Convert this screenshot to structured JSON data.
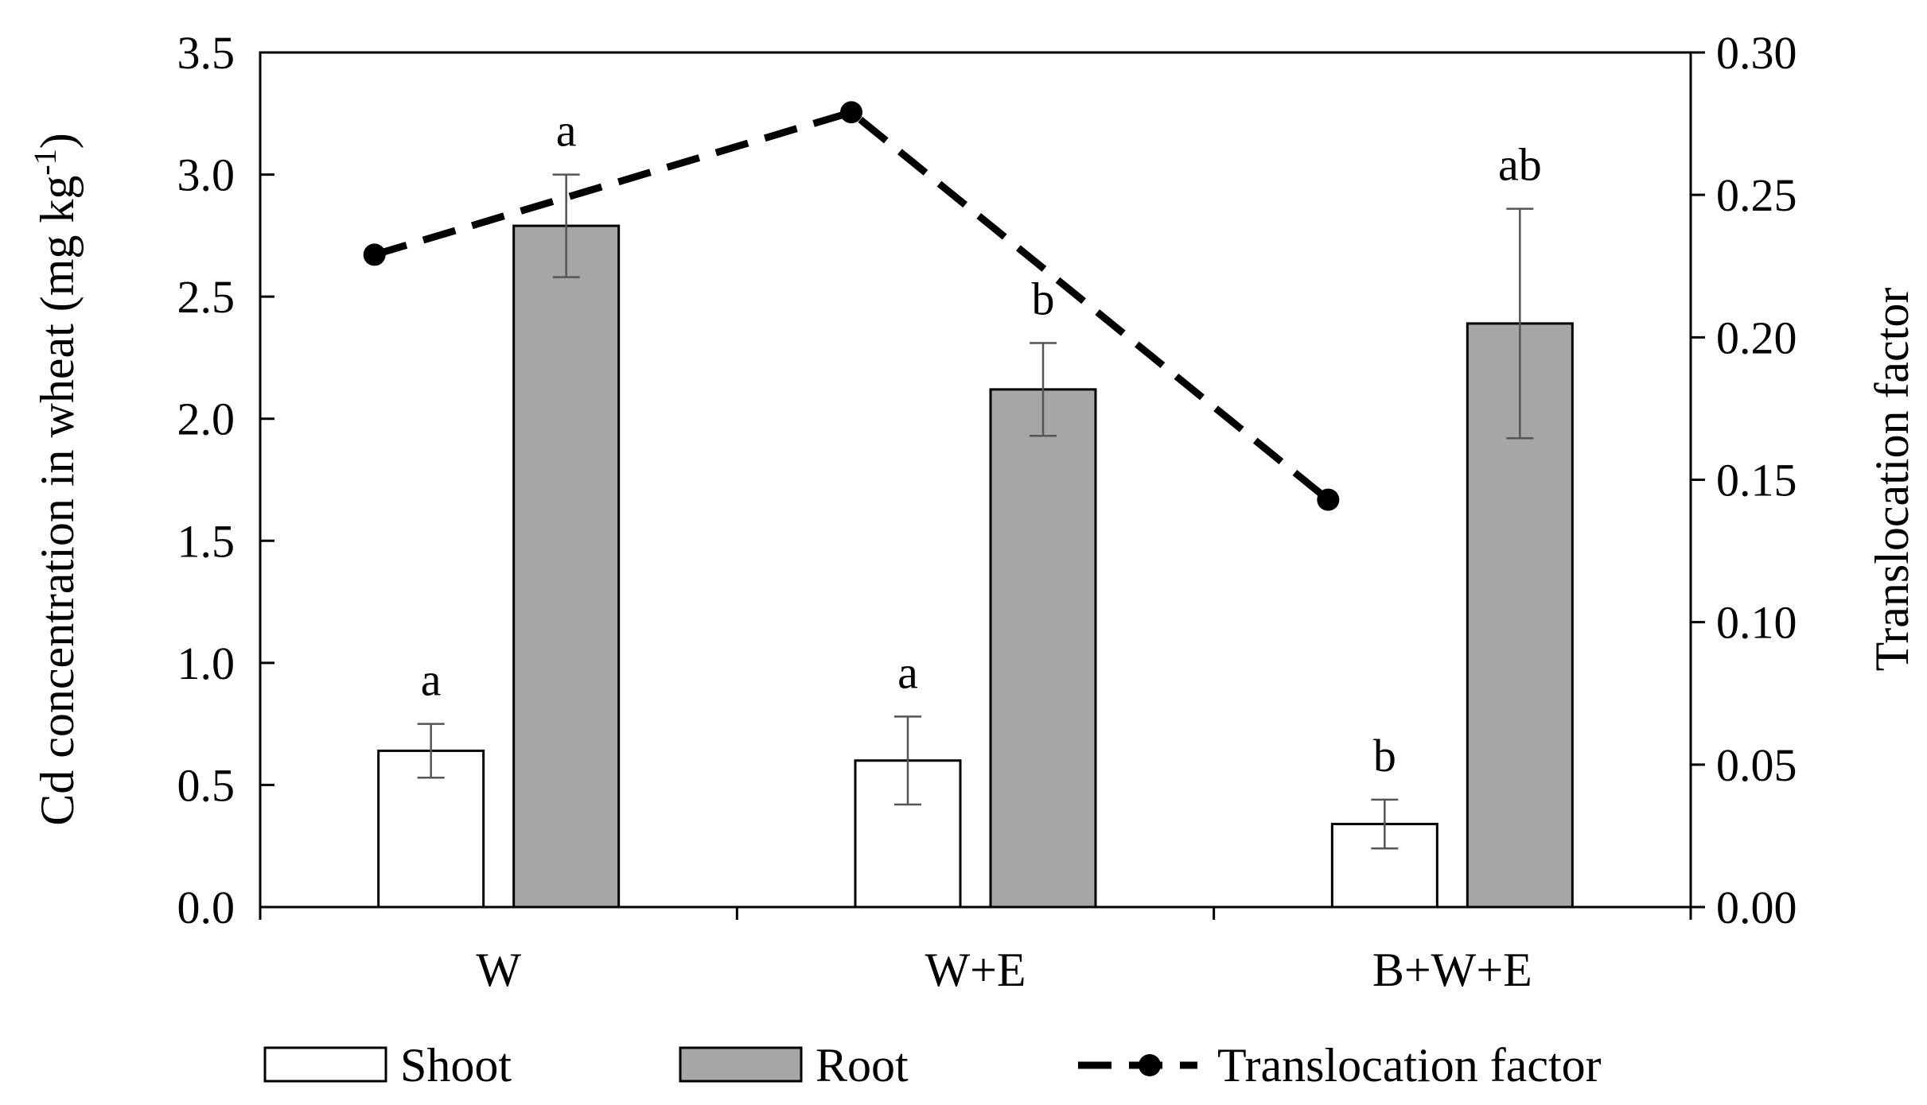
{
  "chart_data": {
    "type": "bar",
    "categories": [
      "W",
      "W+E",
      "B+W+E"
    ],
    "ylabel_main": "Cd concentration in wheat (mg kg",
    "ylabel_sup": "-1",
    "ylabel_close": ")",
    "ylabel_right": "Translocation factor",
    "ylim_left": [
      0,
      3.5
    ],
    "ylim_right": [
      0,
      0.3
    ],
    "yticks_left": [
      "0.0",
      "0.5",
      "1.0",
      "1.5",
      "2.0",
      "2.5",
      "3.0",
      "3.5"
    ],
    "yticks_right": [
      "0.00",
      "0.05",
      "0.10",
      "0.15",
      "0.20",
      "0.25",
      "0.30"
    ],
    "grid": false,
    "legend_position": "bottom",
    "series": [
      {
        "name": "Shoot",
        "axis": "left",
        "kind": "bar",
        "color": "#ffffff",
        "values": [
          0.64,
          0.6,
          0.34
        ],
        "errors": [
          0.11,
          0.18,
          0.1
        ],
        "letters": [
          "a",
          "a",
          "b"
        ]
      },
      {
        "name": "Root",
        "axis": "left",
        "kind": "bar",
        "color": "#a6a6a6",
        "values": [
          2.79,
          2.12,
          2.39
        ],
        "errors": [
          0.21,
          0.19,
          0.47
        ],
        "letters": [
          "a",
          "b",
          "ab"
        ]
      },
      {
        "name": "Translocation factor",
        "axis": "right",
        "kind": "line",
        "style": "dashed",
        "color": "#000000",
        "values": [
          0.229,
          0.279,
          0.143
        ]
      }
    ]
  }
}
